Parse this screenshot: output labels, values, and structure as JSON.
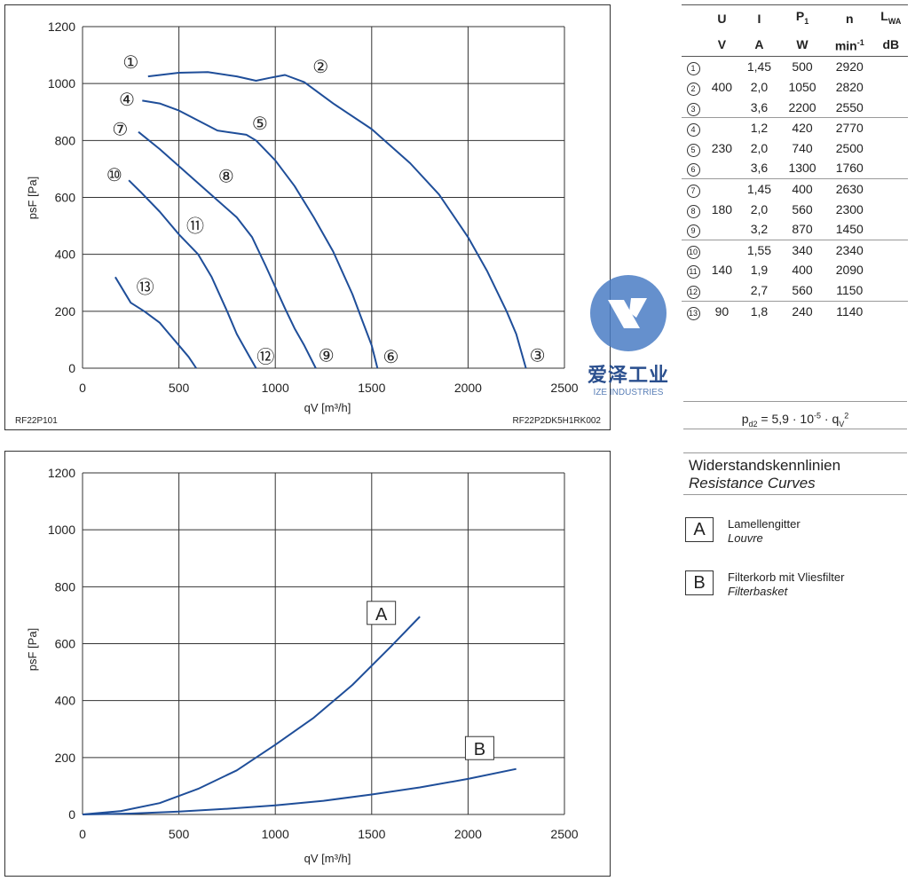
{
  "chart_data": [
    {
      "type": "line",
      "xlabel": "qV [m³/h]",
      "ylabel": "psF [Pa]",
      "xlim": [
        0,
        2500
      ],
      "ylim": [
        0,
        1200
      ],
      "xticks": [
        "0",
        "500",
        "1000",
        "1500",
        "2000",
        "2500"
      ],
      "yticks": [
        "0",
        "200",
        "400",
        "600",
        "800",
        "1000",
        "1200"
      ],
      "grid": true,
      "footer_left": "RF22P101",
      "footer_right": "RF22P2DK5H1RK002",
      "curve_color": "#1f4e99",
      "series": [
        {
          "name": "1-3",
          "x": [
            340,
            500,
            650,
            800,
            900,
            970,
            1050,
            1150,
            1300,
            1500,
            1700,
            1850,
            2000,
            2100,
            2200,
            2250,
            2300
          ],
          "y": [
            1025,
            1038,
            1040,
            1025,
            1010,
            1020,
            1030,
            1005,
            930,
            840,
            720,
            610,
            460,
            340,
            200,
            120,
            0
          ]
        },
        {
          "name": "4-6",
          "x": [
            310,
            400,
            500,
            600,
            700,
            770,
            850,
            900,
            1000,
            1100,
            1200,
            1300,
            1400,
            1450,
            1500,
            1530
          ],
          "y": [
            940,
            930,
            905,
            870,
            835,
            828,
            820,
            800,
            730,
            640,
            530,
            410,
            260,
            170,
            80,
            0
          ]
        },
        {
          "name": "7-9",
          "x": [
            290,
            400,
            500,
            600,
            700,
            800,
            880,
            950,
            1050,
            1100,
            1150,
            1210
          ],
          "y": [
            830,
            770,
            710,
            650,
            590,
            530,
            460,
            360,
            210,
            140,
            80,
            0
          ]
        },
        {
          "name": "10-12",
          "x": [
            240,
            300,
            400,
            500,
            600,
            670,
            750,
            800,
            850,
            900
          ],
          "y": [
            660,
            620,
            550,
            470,
            400,
            320,
            200,
            120,
            60,
            0
          ]
        },
        {
          "name": "13",
          "x": [
            170,
            250,
            320,
            400,
            450,
            500,
            550,
            590
          ],
          "y": [
            320,
            230,
            200,
            160,
            120,
            80,
            40,
            0
          ]
        }
      ],
      "annotations": [
        {
          "label": "①",
          "x": 250,
          "y": 1075
        },
        {
          "label": "②",
          "x": 1235,
          "y": 1060
        },
        {
          "label": "③",
          "x": 2360,
          "y": 45
        },
        {
          "label": "④",
          "x": 230,
          "y": 945
        },
        {
          "label": "⑤",
          "x": 920,
          "y": 860
        },
        {
          "label": "⑥",
          "x": 1600,
          "y": 40
        },
        {
          "label": "⑦",
          "x": 195,
          "y": 840
        },
        {
          "label": "⑧",
          "x": 745,
          "y": 675
        },
        {
          "label": "⑨",
          "x": 1265,
          "y": 45
        },
        {
          "label": "⑩",
          "x": 165,
          "y": 680
        },
        {
          "label": "⑪",
          "x": 585,
          "y": 500
        },
        {
          "label": "⑫",
          "x": 950,
          "y": 40
        },
        {
          "label": "⑬",
          "x": 325,
          "y": 285
        }
      ]
    },
    {
      "type": "line",
      "xlabel": "qV [m³/h]",
      "ylabel": "psF [Pa]",
      "xlim": [
        0,
        2500
      ],
      "ylim": [
        0,
        1200
      ],
      "xticks": [
        "0",
        "500",
        "1000",
        "1500",
        "2000",
        "2500"
      ],
      "yticks": [
        "0",
        "200",
        "400",
        "600",
        "800",
        "1000",
        "1200"
      ],
      "grid": true,
      "curve_color": "#1f4e99",
      "series": [
        {
          "name": "A",
          "x": [
            0,
            200,
            400,
            600,
            800,
            1000,
            1200,
            1400,
            1600,
            1750
          ],
          "y": [
            0,
            12,
            40,
            90,
            155,
            245,
            340,
            455,
            590,
            695
          ]
        },
        {
          "name": "B",
          "x": [
            0,
            250,
            500,
            750,
            1000,
            1250,
            1500,
            1750,
            2000,
            2250
          ],
          "y": [
            0,
            3,
            10,
            20,
            32,
            48,
            70,
            95,
            125,
            160
          ]
        }
      ],
      "annotations": [
        {
          "label": "A",
          "x": 1550,
          "y": 705
        },
        {
          "label": "B",
          "x": 2060,
          "y": 230
        }
      ]
    }
  ],
  "table": {
    "head1": [
      "",
      "U",
      "I",
      "P1",
      "n",
      "LWA"
    ],
    "head2": [
      "",
      "V",
      "A",
      "W",
      "min-1",
      "dB"
    ],
    "rows": [
      {
        "num": "1",
        "u": "",
        "i": "1,45",
        "p": "500",
        "n": "2920"
      },
      {
        "num": "2",
        "u": "400",
        "i": "2,0",
        "p": "1050",
        "n": "2820"
      },
      {
        "num": "3",
        "u": "",
        "i": "3,6",
        "p": "2200",
        "n": "2550"
      },
      {
        "num": "4",
        "u": "",
        "i": "1,2",
        "p": "420",
        "n": "2770"
      },
      {
        "num": "5",
        "u": "230",
        "i": "2,0",
        "p": "740",
        "n": "2500"
      },
      {
        "num": "6",
        "u": "",
        "i": "3,6",
        "p": "1300",
        "n": "1760"
      },
      {
        "num": "7",
        "u": "",
        "i": "1,45",
        "p": "400",
        "n": "2630"
      },
      {
        "num": "8",
        "u": "180",
        "i": "2,0",
        "p": "560",
        "n": "2300"
      },
      {
        "num": "9",
        "u": "",
        "i": "3,2",
        "p": "870",
        "n": "1450"
      },
      {
        "num": "10",
        "u": "",
        "i": "1,55",
        "p": "340",
        "n": "2340"
      },
      {
        "num": "11",
        "u": "140",
        "i": "1,9",
        "p": "400",
        "n": "2090"
      },
      {
        "num": "12",
        "u": "",
        "i": "2,7",
        "p": "560",
        "n": "1150"
      },
      {
        "num": "13",
        "u": "90",
        "i": "1,8",
        "p": "240",
        "n": "1140"
      }
    ]
  },
  "formula": "pd2 = 5,9 · 10-5 · qV2",
  "resistance": {
    "title_de": "Widerstandskennlinien",
    "title_en": "Resistance Curves",
    "items": [
      {
        "key": "A",
        "de": "Lamellengitter",
        "en": "Louvre"
      },
      {
        "key": "B",
        "de": "Filterkorb mit Vliesfilter",
        "en": "Filterbasket"
      }
    ]
  },
  "watermark": {
    "cn": "爱泽工业",
    "en": "IZE INDUSTRIES",
    "color": "#4a7dc4"
  }
}
